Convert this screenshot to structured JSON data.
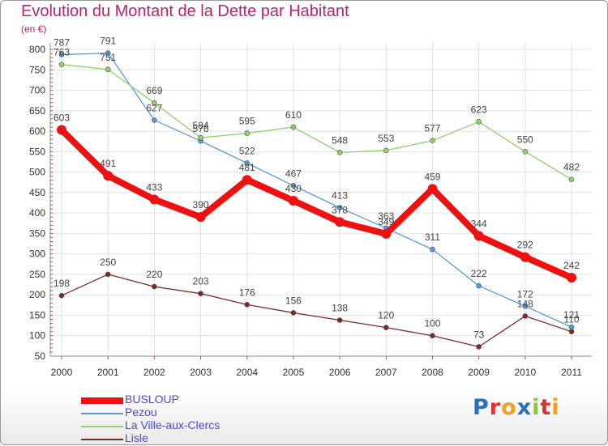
{
  "title": "Evolution du Montant de la Dette par Habitant",
  "unit_label": "(en €)",
  "logo": {
    "text": "Proxiti",
    "letters": [
      {
        "ch": "P",
        "color": "#2b6fc0"
      },
      {
        "ch": "r",
        "color": "#e0312f"
      },
      {
        "ch": "o",
        "color": "#f0a21c"
      },
      {
        "ch": "x",
        "color": "#2b6fc0"
      },
      {
        "ch": "i",
        "color": "#8cc63f"
      },
      {
        "ch": "t",
        "color": "#e0312f"
      },
      {
        "ch": "i",
        "color": "#f0a21c"
      }
    ]
  },
  "chart_data": {
    "type": "line",
    "title": "Evolution du Montant de la Dette par Habitant",
    "ylabel": "(en €)",
    "xlabel": "",
    "x": [
      "2000",
      "2001",
      "2002",
      "2003",
      "2004",
      "2005",
      "2006",
      "2007",
      "2008",
      "2009",
      "2010",
      "2011"
    ],
    "ylim": [
      50,
      800
    ],
    "yticks": [
      50,
      100,
      150,
      200,
      250,
      300,
      350,
      400,
      450,
      500,
      550,
      600,
      650,
      700,
      750,
      800
    ],
    "grid": true,
    "legend_position": "bottom-left",
    "series": [
      {
        "name": "Pezou",
        "color": "#5b9bd5",
        "values": [
          787,
          791,
          627,
          576,
          522,
          467,
          413,
          363,
          311,
          222,
          172,
          121
        ]
      },
      {
        "name": "La Ville-aux-Clercs",
        "color": "#8fd16a",
        "values": [
          763,
          751,
          669,
          584,
          595,
          610,
          548,
          553,
          577,
          623,
          550,
          482
        ]
      },
      {
        "name": "Lisle",
        "color": "#7b2a2a",
        "values": [
          198,
          250,
          220,
          203,
          176,
          156,
          138,
          120,
          100,
          73,
          148,
          110
        ]
      },
      {
        "name": "BUSLOUP",
        "color": "#ee1111",
        "values": [
          603,
          491,
          433,
          390,
          481,
          430,
          378,
          349,
          459,
          344,
          292,
          242
        ]
      }
    ]
  }
}
